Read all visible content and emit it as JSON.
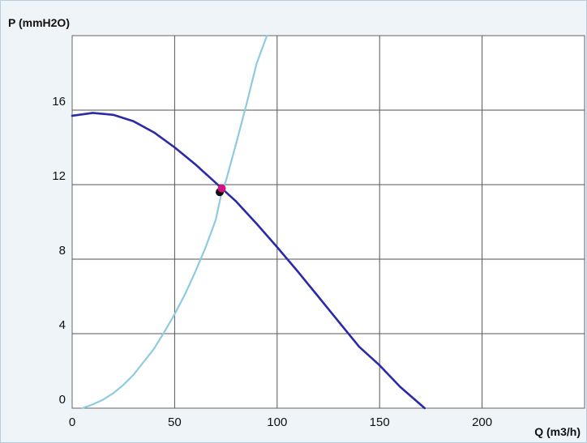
{
  "chart_data": {
    "type": "line",
    "xlabel": "Q (m3/h)",
    "ylabel": "P (mmH2O)",
    "xlim": [
      0,
      250
    ],
    "ylim": [
      0,
      20
    ],
    "x_ticks": [
      0,
      50,
      100,
      150,
      200
    ],
    "y_ticks": [
      0,
      4,
      8,
      12,
      16
    ],
    "grid": true,
    "legend": "none",
    "series": [
      {
        "color": "#2a2aa8",
        "x": [
          0,
          10,
          20,
          30,
          40,
          50,
          60,
          70,
          73,
          80,
          90,
          100,
          110,
          120,
          130,
          140,
          150,
          160,
          172
        ],
        "y": [
          15.7,
          15.85,
          15.75,
          15.4,
          14.8,
          14.0,
          13.1,
          12.1,
          11.8,
          11.1,
          9.9,
          8.65,
          7.35,
          6.0,
          4.65,
          3.3,
          2.3,
          1.15,
          0
        ]
      },
      {
        "color": "#8ecbe0",
        "x": [
          5,
          10,
          15,
          20,
          25,
          30,
          35,
          40,
          45,
          50,
          55,
          60,
          65,
          70,
          73,
          75,
          80,
          85,
          90,
          95
        ],
        "y": [
          0,
          0.2,
          0.45,
          0.8,
          1.25,
          1.8,
          2.5,
          3.2,
          4.1,
          5.05,
          6.1,
          7.3,
          8.6,
          10.1,
          11.6,
          12.2,
          14.2,
          16.3,
          18.5,
          20
        ]
      }
    ],
    "points": [
      {
        "x": 72,
        "y": 11.6,
        "color": "#111111"
      },
      {
        "x": 73,
        "y": 11.8,
        "color": "#d4147a"
      }
    ]
  }
}
